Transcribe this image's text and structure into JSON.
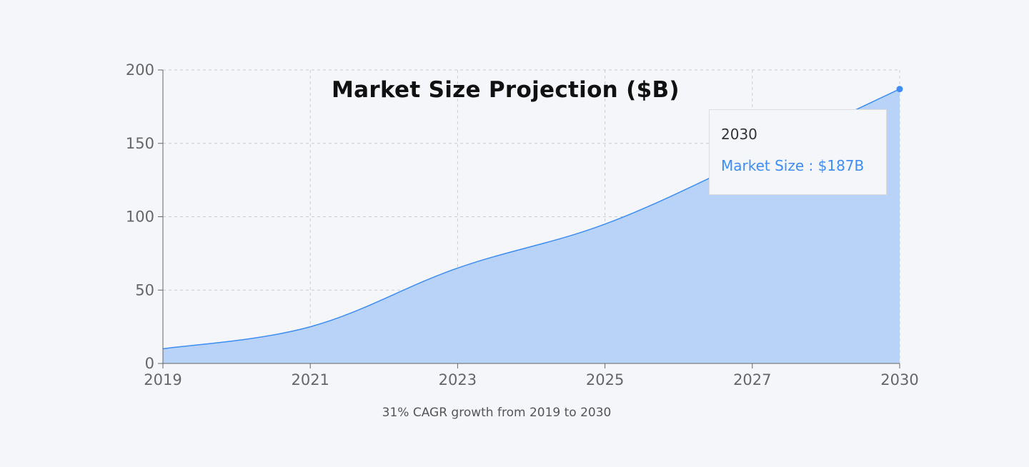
{
  "chart_data": {
    "type": "area",
    "title": "Market Size Projection ($B)",
    "caption": "31% CAGR growth from 2019 to 2030",
    "categories": [
      "2019",
      "2021",
      "2023",
      "2025",
      "2027",
      "2030"
    ],
    "series": [
      {
        "name": "Market Size",
        "values": [
          10,
          25,
          65,
          95,
          140,
          187
        ]
      }
    ],
    "ylim": [
      0,
      200
    ],
    "yticks": [
      "0",
      "50",
      "100",
      "150",
      "200"
    ],
    "grid": true,
    "colors": {
      "line": "#3d8df5",
      "fill": "#b8d3f7"
    },
    "tooltip": {
      "label": "2030",
      "value_text": "Market Size : $187B"
    }
  }
}
